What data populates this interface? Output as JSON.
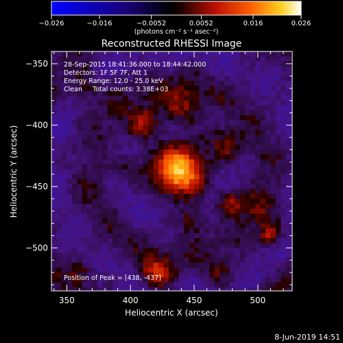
{
  "chart_data": {
    "type": "heatmap",
    "title": "Reconstructed RHESSI Image",
    "xlabel": "Heliocentric X (arcsec)",
    "ylabel": "Heliocentric Y (arcsec)",
    "xlim": [
      338,
      527
    ],
    "ylim": [
      -535,
      -340
    ],
    "x_ticks": [
      350,
      400,
      450,
      500
    ],
    "y_ticks": [
      -350,
      -400,
      -450,
      -500
    ],
    "grid": false,
    "colorbar": {
      "range": [
        -0.026,
        0.026
      ],
      "ticks": [
        "−0.026",
        "−0.016",
        "−0.0052",
        "0.0052",
        "0.016",
        "0.026"
      ],
      "units_label": "(photons cm⁻² s⁻¹ asec⁻²)"
    },
    "annotations": [
      "28-Sep-2015 18:41:36.000 to 18:44:42.000",
      "Detectors: 1F 5F 7F, Att 1",
      "Energy Range: 12.0 - 25.0 keV",
      "Clean     Total counts: 3.38E+03"
    ],
    "peak_label": "Position of Peak = [438, -437]",
    "peak": [
      438,
      -437
    ],
    "sources": [
      {
        "x": 438,
        "y": -437,
        "peak": 0.026,
        "sigma": 11
      },
      {
        "x": 410,
        "y": -398,
        "peak": 0.012,
        "sigma": 10
      },
      {
        "x": 440,
        "y": -385,
        "peak": 0.011,
        "sigma": 11
      },
      {
        "x": 470,
        "y": -410,
        "peak": 0.008,
        "sigma": 9
      },
      {
        "x": 400,
        "y": -435,
        "peak": 0.007,
        "sigma": 8
      },
      {
        "x": 478,
        "y": -463,
        "peak": 0.013,
        "sigma": 7
      },
      {
        "x": 448,
        "y": -478,
        "peak": 0.01,
        "sigma": 8
      },
      {
        "x": 480,
        "y": -420,
        "peak": 0.007,
        "sigma": 8
      },
      {
        "x": 500,
        "y": -470,
        "peak": 0.006,
        "sigma": 9
      },
      {
        "x": 510,
        "y": -490,
        "peak": 0.012,
        "sigma": 6
      },
      {
        "x": 420,
        "y": -520,
        "peak": 0.014,
        "sigma": 9
      },
      {
        "x": 470,
        "y": -520,
        "peak": 0.007,
        "sigma": 8
      },
      {
        "x": 360,
        "y": -520,
        "peak": 0.007,
        "sigma": 7
      },
      {
        "x": 365,
        "y": -370,
        "peak": 0.008,
        "sigma": 9
      }
    ]
  },
  "footer": {
    "date": "8-Jun-2019 14:51"
  }
}
